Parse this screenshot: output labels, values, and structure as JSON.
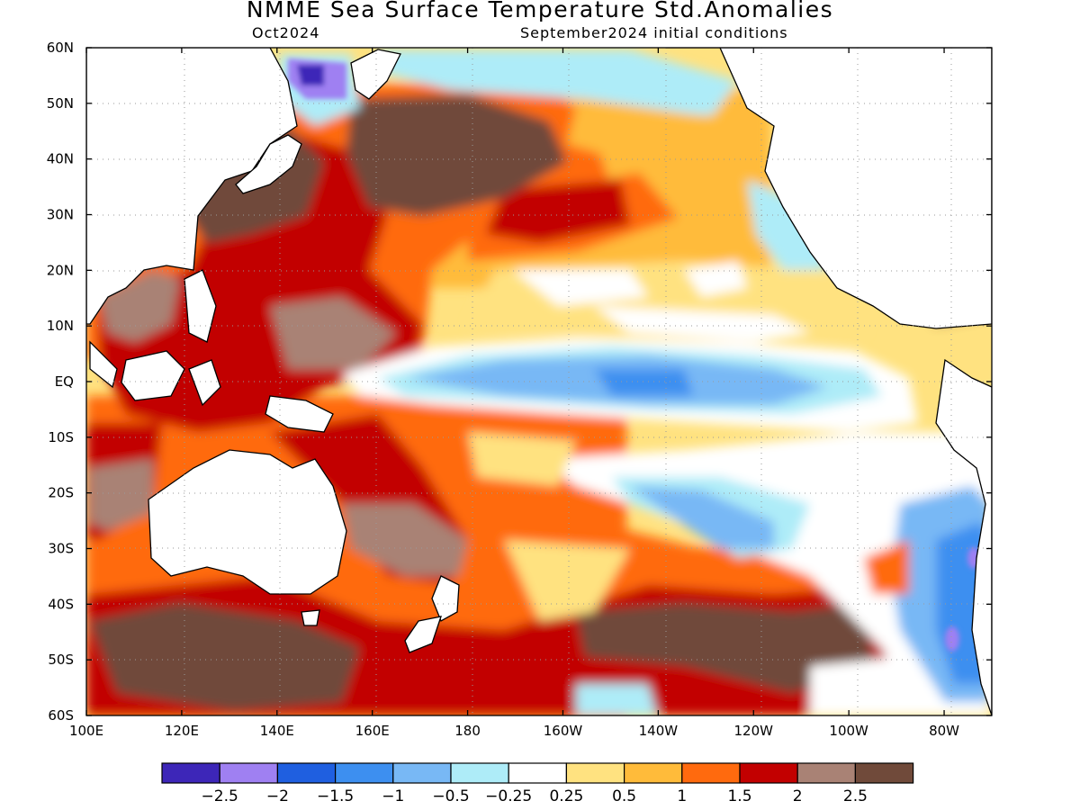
{
  "title": "NMME Sea Surface Temperature Std.Anomalies",
  "subtitle_left": "Oct2024",
  "subtitle_right": "September2024 initial conditions",
  "map": {
    "lon_range": [
      100,
      290
    ],
    "lat_range": [
      -60,
      60
    ],
    "lat_ticks": [
      "60N",
      "50N",
      "40N",
      "30N",
      "20N",
      "10N",
      "EQ",
      "10S",
      "20S",
      "30S",
      "40S",
      "50S",
      "60S"
    ],
    "lon_ticks": [
      "100E",
      "120E",
      "140E",
      "160E",
      "180",
      "160W",
      "140W",
      "120W",
      "100W",
      "80W"
    ],
    "land_color": "#ffffff",
    "coast_color": "#000000",
    "grid": "dotted"
  },
  "colorbar": {
    "colors": [
      "#3d26b8",
      "#9f80f2",
      "#1f5fe0",
      "#3d8ff0",
      "#78b8f5",
      "#aeecf8",
      "#ffffff",
      "#ffe280",
      "#ffbb3a",
      "#ff6a0e",
      "#c20000",
      "#a98275",
      "#704a3a"
    ],
    "labels": [
      "−2.5",
      "−2",
      "−1.5",
      "−1",
      "−0.5",
      "−0.25",
      "0.25",
      "0.5",
      "1",
      "1.5",
      "2",
      "2.5"
    ]
  },
  "features": [
    {
      "name": "equatorial-cold-tongue",
      "level": "-1 to -0.5"
    },
    {
      "name": "north-pacific-warm-blob",
      "level": "> 2.5"
    },
    {
      "name": "western-pacific-warm-pool",
      "level": "1.5 to 2.5"
    },
    {
      "name": "south-pacific-warm-band",
      "level": "1 to 2.5"
    },
    {
      "name": "peru-chile-coastal-cool",
      "level": "-1.5 to -0.5"
    }
  ]
}
